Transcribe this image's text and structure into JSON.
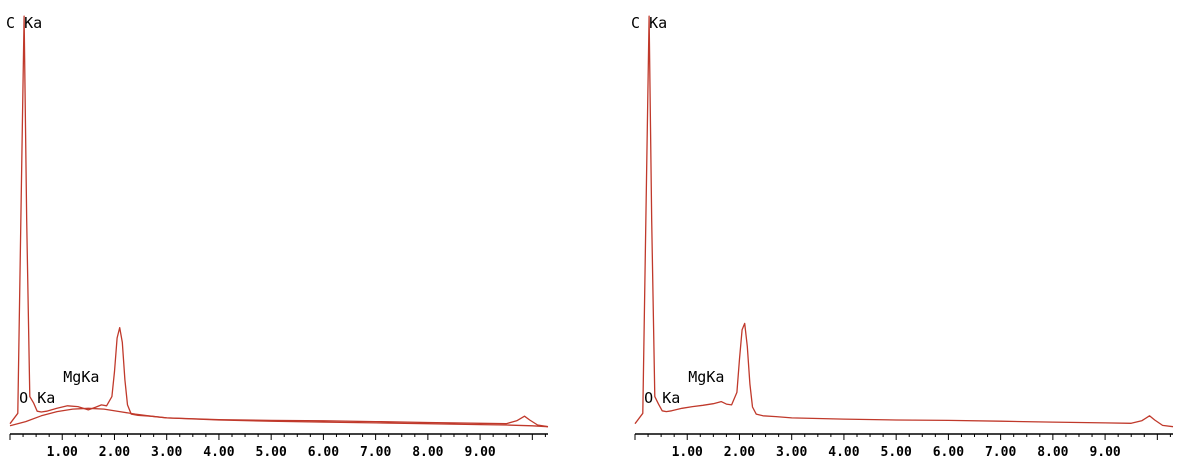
{
  "colors": {
    "spectrum": "#c0392b",
    "axis": "#000000"
  },
  "chart_data": [
    {
      "type": "line",
      "title": "",
      "xlabel": "",
      "ylabel": "",
      "xlim": [
        0,
        10.3
      ],
      "ylim": [
        0,
        100
      ],
      "grid": false,
      "x_tick_labels": [
        "1.00",
        "2.00",
        "3.00",
        "4.00",
        "5.00",
        "6.00",
        "7.00",
        "8.00",
        "9.00"
      ],
      "x_tick_values": [
        1,
        2,
        3,
        4,
        5,
        6,
        7,
        8,
        9
      ],
      "annotations": [
        {
          "text": "C Ka",
          "x": 0.27,
          "y": 99
        },
        {
          "text": "O Ka",
          "x": 0.52,
          "y": 6.5
        },
        {
          "text": "MgKa",
          "x": 1.25,
          "y": 10.5
        }
      ],
      "series": [
        {
          "x": [
            0.0,
            0.15,
            0.22,
            0.27,
            0.32,
            0.38,
            0.45,
            0.52,
            0.6,
            0.7,
            0.9,
            1.1,
            1.3,
            1.5,
            1.65,
            1.75,
            1.85,
            1.95,
            2.0,
            2.05,
            2.1,
            2.15,
            2.2,
            2.25,
            2.32,
            2.45,
            2.7,
            3.0,
            4.0,
            5.0,
            6.0,
            7.0,
            8.0,
            9.0,
            9.5,
            9.7,
            9.85,
            9.95,
            10.1,
            10.3
          ],
          "y": [
            1.5,
            4,
            60,
            99,
            50,
            8,
            6.5,
            4.5,
            4.3,
            4.5,
            5.2,
            5.8,
            5.6,
            4.8,
            5.5,
            6.0,
            5.8,
            8.0,
            14,
            22,
            24.5,
            21,
            12,
            6,
            3.8,
            3.5,
            3.3,
            2.9,
            2.5,
            2.3,
            2.2,
            2.0,
            1.8,
            1.6,
            1.5,
            2.2,
            3.3,
            2.4,
            1.2,
            0.8
          ]
        },
        {
          "x": [
            0.0,
            0.3,
            0.6,
            0.9,
            1.2,
            1.5,
            1.8,
            2.1,
            2.4,
            2.7,
            3.0,
            4.0,
            5.0,
            6.0,
            7.0,
            8.0,
            9.0,
            9.5,
            10.0,
            10.3
          ],
          "y": [
            1.0,
            2.0,
            3.4,
            4.4,
            5.0,
            5.2,
            5.0,
            4.4,
            3.8,
            3.3,
            2.9,
            2.4,
            2.1,
            1.9,
            1.7,
            1.5,
            1.3,
            1.2,
            1.0,
            0.8
          ]
        }
      ]
    },
    {
      "type": "line",
      "title": "",
      "xlabel": "",
      "ylabel": "",
      "xlim": [
        0,
        10.3
      ],
      "ylim": [
        0,
        100
      ],
      "grid": false,
      "x_tick_labels": [
        "1.00",
        "2.00",
        "3.00",
        "4.00",
        "5.00",
        "6.00",
        "7.00",
        "8.00",
        "9.00"
      ],
      "x_tick_values": [
        1,
        2,
        3,
        4,
        5,
        6,
        7,
        8,
        9
      ],
      "annotations": [
        {
          "text": "C Ka",
          "x": 0.27,
          "y": 99
        },
        {
          "text": "O Ka",
          "x": 0.52,
          "y": 6.5
        },
        {
          "text": "MgKa",
          "x": 1.25,
          "y": 10.5
        }
      ],
      "series": [
        {
          "x": [
            0.0,
            0.15,
            0.22,
            0.27,
            0.32,
            0.38,
            0.45,
            0.52,
            0.6,
            0.7,
            0.9,
            1.1,
            1.3,
            1.5,
            1.65,
            1.75,
            1.85,
            1.95,
            2.0,
            2.05,
            2.1,
            2.15,
            2.2,
            2.25,
            2.32,
            2.45,
            2.7,
            3.0,
            4.0,
            5.0,
            6.0,
            7.0,
            8.0,
            9.0,
            9.5,
            9.7,
            9.85,
            9.95,
            10.1,
            10.3
          ],
          "y": [
            1.5,
            4,
            60,
            99,
            50,
            8,
            6.2,
            4.6,
            4.4,
            4.6,
            5.2,
            5.6,
            5.9,
            6.3,
            6.8,
            6.2,
            6.0,
            9.0,
            17,
            24,
            25.5,
            20,
            11,
            5.5,
            3.8,
            3.4,
            3.2,
            2.9,
            2.6,
            2.4,
            2.3,
            2.1,
            1.9,
            1.7,
            1.6,
            2.2,
            3.4,
            2.4,
            1.1,
            0.8
          ]
        }
      ]
    }
  ]
}
